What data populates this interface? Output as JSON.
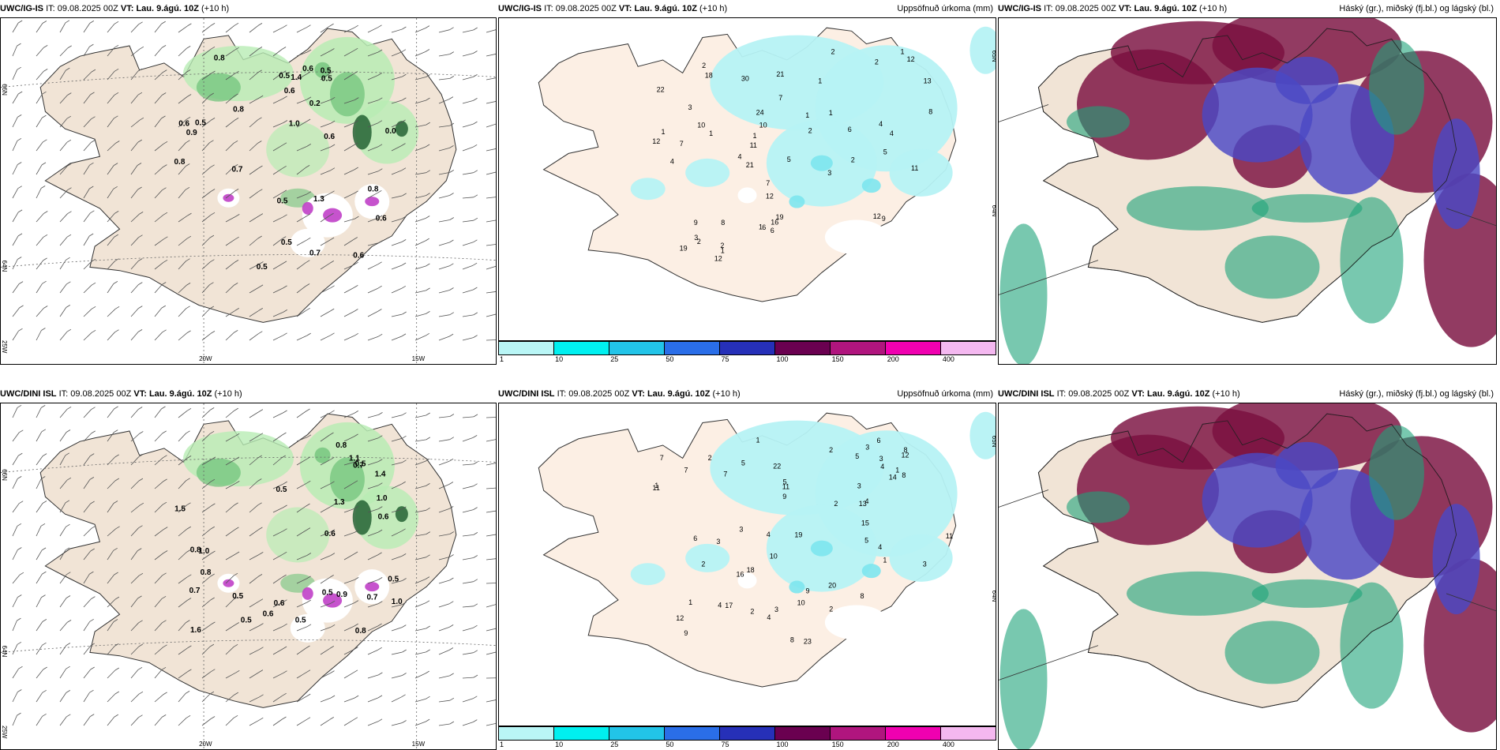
{
  "panels": [
    {
      "model": "UWC/IG-IS",
      "it_label": "IT:",
      "it": "09.08.2025 00Z",
      "vt_label": "VT:",
      "vt": "Lau. 9.ágú. 10Z",
      "lead": "(+10 h)",
      "title": "",
      "grid_labels": [
        "66N",
        "64N",
        "25W",
        "20W",
        "15W"
      ],
      "values": [
        "0.6",
        "0.5",
        "0.5",
        "0.0",
        "0.8",
        "0.9",
        "0.5",
        "0.8",
        "0.6",
        "0.6",
        "1.0",
        "0.7",
        "0.2",
        "1.3",
        "1.4",
        "0.8",
        "0.5",
        "0.5",
        "0.5",
        "0.8",
        "0.6",
        "0.7",
        "0.6",
        "0.5",
        "0.6"
      ]
    },
    {
      "model": "UWC/IG-IS",
      "it_label": "IT:",
      "it": "09.08.2025 00Z",
      "vt_label": "VT:",
      "vt": "Lau. 9.ágú. 10Z",
      "lead": "(+10 h)",
      "title": "Uppsöfnuð úrkoma (mm)",
      "grid_labels": [
        "65N",
        "64N"
      ],
      "values": [
        "2",
        "1",
        "19",
        "16",
        "12",
        "9",
        "11",
        "18",
        "4",
        "7",
        "12",
        "10",
        "12",
        "8",
        "7",
        "8",
        "12",
        "4",
        "2",
        "9",
        "5",
        "6",
        "4",
        "22",
        "4",
        "11",
        "6",
        "1",
        "2",
        "1",
        "3",
        "5",
        "2",
        "1",
        "21",
        "1",
        "1",
        "2",
        "6",
        "19",
        "12",
        "21",
        "30",
        "24",
        "13",
        "3",
        "7",
        "2",
        "10",
        "1",
        "2",
        "1",
        "3",
        "1"
      ]
    },
    {
      "model": "UWC/IG-IS",
      "it_label": "IT:",
      "it": "09.08.2025 00Z",
      "vt_label": "VT:",
      "vt": "Lau. 9.ágú. 10Z",
      "lead": "(+10 h)",
      "title": "Háský (gr.), miðský (fj.bl.) og lágský (bl.)",
      "grid_labels": [],
      "values": []
    },
    {
      "model": "UWC/DINI ISL",
      "it_label": "IT:",
      "it": "09.08.2025 00Z",
      "vt_label": "VT:",
      "vt": "Lau. 9.ágú. 10Z",
      "lead": "(+10 h)",
      "title": "",
      "grid_labels": [
        "66N",
        "64N",
        "25W",
        "20W",
        "15W"
      ],
      "values": [
        "0.5",
        "0.8",
        "0.9",
        "0.5",
        "1.4",
        "1.0",
        "1.5",
        "0.8",
        "1.1",
        "0.6",
        "0.7",
        "1.0",
        "0.8",
        "0.5",
        "0.6",
        "1.0",
        "0.5",
        "0.8",
        "0.6",
        "0.7",
        "0.5",
        "0.6",
        "0.5",
        "0.7",
        "0.5",
        "1.3",
        "1.6"
      ]
    },
    {
      "model": "UWC/DINI ISL",
      "it_label": "IT:",
      "it": "09.08.2025 00Z",
      "vt_label": "VT:",
      "vt": "Lau. 9.ágú. 10Z",
      "lead": "(+10 h)",
      "title": "Uppsöfnuð úrkoma (mm)",
      "grid_labels": [
        "65N",
        "64N"
      ],
      "values": [
        "10",
        "16",
        "18",
        "23",
        "12",
        "1",
        "4",
        "8",
        "9",
        "11",
        "7",
        "5",
        "12",
        "4",
        "1",
        "2",
        "6",
        "11",
        "8",
        "5",
        "4",
        "11",
        "2",
        "1",
        "2",
        "3",
        "5",
        "7",
        "17",
        "3",
        "2",
        "4",
        "4",
        "2",
        "20",
        "4",
        "6",
        "9",
        "9",
        "3",
        "14",
        "1",
        "7",
        "10",
        "8",
        "15",
        "22",
        "19",
        "13",
        "3",
        "8",
        "5",
        "3",
        "3",
        "1",
        "2",
        "3"
      ]
    },
    {
      "model": "UWC/DINI ISL",
      "it_label": "IT:",
      "it": "09.08.2025 00Z",
      "vt_label": "VT:",
      "vt": "Lau. 9.ágú. 10Z",
      "lead": "(+10 h)",
      "title": "Háský (gr.), miðský (fj.bl.) og lágský (bl.)",
      "grid_labels": [],
      "values": []
    }
  ],
  "legend": {
    "labels": [
      "1",
      "10",
      "25",
      "50",
      "75",
      "100",
      "150",
      "200",
      "400"
    ],
    "colors": [
      "#b9f6f6",
      "#00f0f0",
      "#22c4e8",
      "#2a6ee8",
      "#2630b8",
      "#6a0050",
      "#b0157e",
      "#f000b0",
      "#f4b8f0"
    ]
  },
  "colors": {
    "land": "#f1e4d6",
    "precip_land": "#fcefe4",
    "light_green": "#b8ecb4",
    "mid_green": "#72c47c",
    "dark_green": "#1a5a2c",
    "magenta": "#c040c8",
    "cyan_light": "#b6f2f4",
    "high_cloud": "#1ea47a",
    "mid_cloud": "#7a1040",
    "low_cloud": "#4a48c4"
  }
}
